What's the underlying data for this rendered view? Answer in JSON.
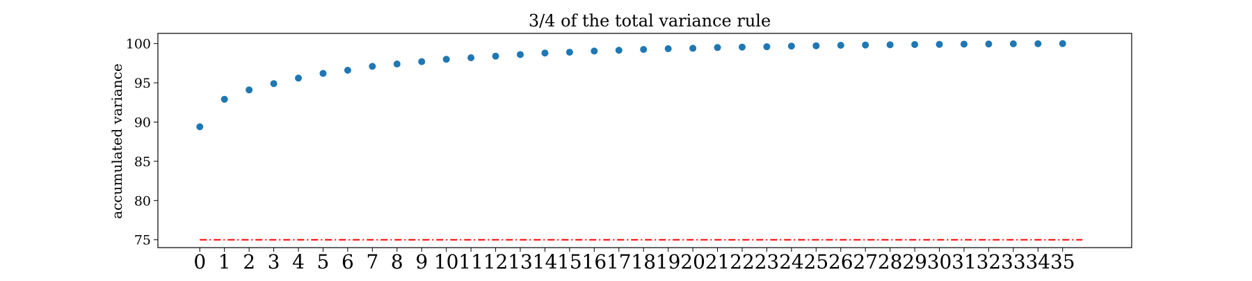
{
  "chart_data": {
    "type": "scatter",
    "title": "3/4 of the total variance rule",
    "xlabel": "",
    "ylabel": "accumulated variance",
    "x": [
      0,
      1,
      2,
      3,
      4,
      5,
      6,
      7,
      8,
      9,
      10,
      11,
      12,
      13,
      14,
      15,
      16,
      17,
      18,
      19,
      20,
      21,
      22,
      23,
      24,
      25,
      26,
      27,
      28,
      29,
      30,
      31,
      32,
      33,
      34,
      35
    ],
    "y": [
      89.4,
      92.9,
      94.1,
      94.9,
      95.6,
      96.2,
      96.6,
      97.1,
      97.4,
      97.7,
      98.0,
      98.2,
      98.4,
      98.6,
      98.8,
      98.9,
      99.05,
      99.15,
      99.25,
      99.35,
      99.4,
      99.5,
      99.55,
      99.6,
      99.68,
      99.72,
      99.78,
      99.82,
      99.85,
      99.88,
      99.9,
      99.93,
      99.95,
      99.97,
      99.98,
      100.0
    ],
    "xticks": [
      "0",
      "1",
      "2",
      "3",
      "4",
      "5",
      "6",
      "7",
      "8",
      "9",
      "10",
      "11",
      "12",
      "13",
      "14",
      "15",
      "16",
      "17",
      "18",
      "19",
      "20",
      "21",
      "22",
      "23",
      "24",
      "25",
      "26",
      "27",
      "28",
      "29",
      "30",
      "31",
      "32",
      "33",
      "34",
      "35"
    ],
    "yticks": [
      "75",
      "80",
      "85",
      "90",
      "95",
      "100"
    ],
    "ylim": [
      74.0,
      101.3
    ],
    "xlim": [
      -1.7,
      37.8
    ],
    "reference_line": {
      "y": 75,
      "x_range": [
        0,
        35.8
      ],
      "style": "dash-dot",
      "color": "#ff0000"
    },
    "marker_color": "#1f77b4",
    "grid": false,
    "legend": "none"
  }
}
